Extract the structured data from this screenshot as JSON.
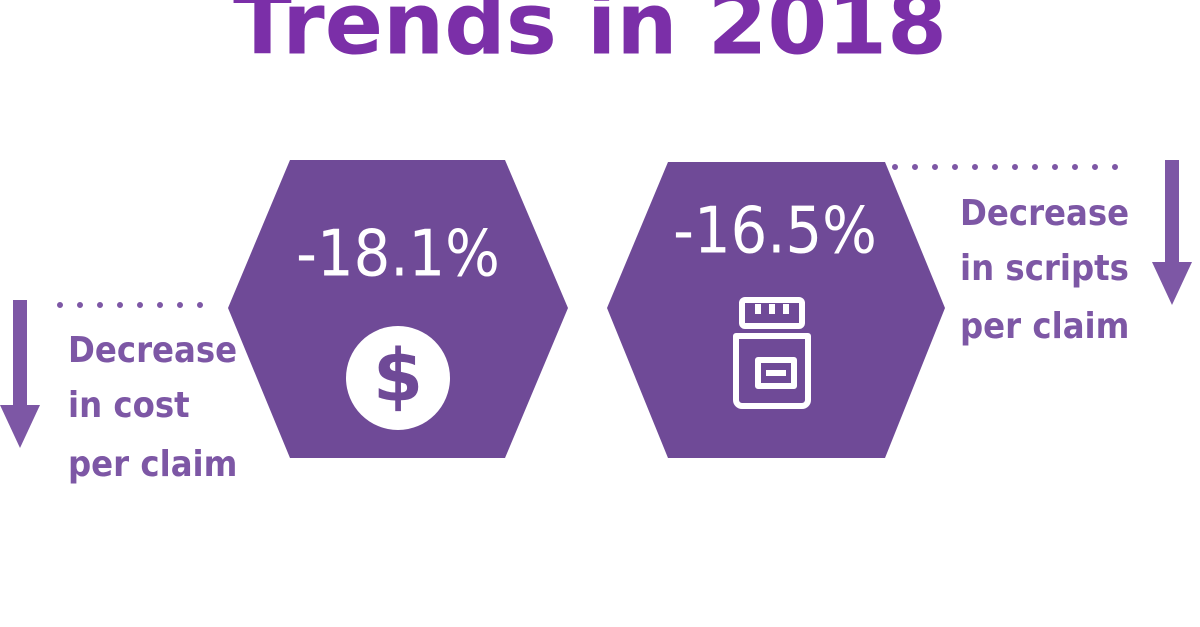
{
  "title": "Trends in 2018",
  "stats": [
    {
      "value": "-18.1%",
      "description": [
        "Decrease",
        "in cost",
        "per claim"
      ]
    },
    {
      "value": "-16.5%",
      "description": [
        "Decrease",
        "in scripts",
        "per claim"
      ]
    }
  ]
}
